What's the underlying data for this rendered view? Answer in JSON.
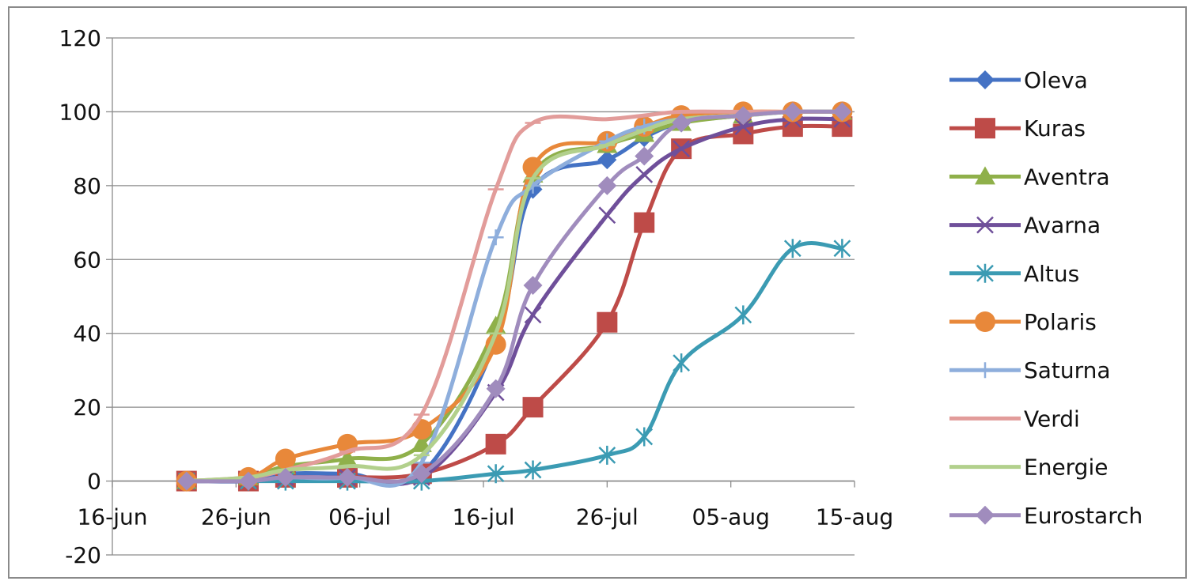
{
  "chart_data": {
    "type": "line",
    "title": "",
    "xlabel": "",
    "ylabel": "",
    "x_ticks": [
      "16-jun",
      "26-jun",
      "06-jul",
      "16-jul",
      "26-jul",
      "05-aug",
      "15-aug"
    ],
    "y_ticks": [
      "120",
      "100",
      "80",
      "60",
      "40",
      "20",
      "0",
      "-20"
    ],
    "xlim_days": [
      0,
      60
    ],
    "ylim": [
      -20,
      120
    ],
    "grid": "horizontal",
    "legend_position": "right",
    "x_days_since_16jun": [
      6,
      11,
      14,
      19,
      25,
      31,
      34,
      40,
      43,
      46,
      51,
      55,
      59
    ],
    "series": [
      {
        "name": "Oleva",
        "color": "#4472c4",
        "marker": "diamond",
        "values": [
          0,
          0,
          2,
          2,
          2,
          38,
          79,
          87,
          93,
          97,
          99,
          100,
          100
        ]
      },
      {
        "name": "Kuras",
        "color": "#be4b48",
        "marker": "square",
        "values": [
          0,
          0,
          1,
          1,
          2,
          10,
          20,
          43,
          70,
          90,
          94,
          96,
          96
        ]
      },
      {
        "name": "Aventra",
        "color": "#8fb04a",
        "marker": "triangle",
        "values": [
          0,
          1,
          4,
          6,
          10,
          42,
          83,
          91,
          94,
          97,
          99,
          100,
          100
        ]
      },
      {
        "name": "Avarna",
        "color": "#6f4f9a",
        "marker": "x",
        "values": [
          0,
          0,
          1,
          1,
          1,
          24,
          45,
          72,
          83,
          90,
          96,
          98,
          98
        ]
      },
      {
        "name": "Altus",
        "color": "#3b9bb3",
        "marker": "asterisk",
        "values": [
          0,
          0,
          0,
          0,
          0,
          2,
          3,
          7,
          12,
          32,
          45,
          63,
          63
        ]
      },
      {
        "name": "Polaris",
        "color": "#e8883a",
        "marker": "circle",
        "values": [
          0,
          1,
          6,
          10,
          14,
          37,
          85,
          92,
          96,
          99,
          100,
          100,
          100
        ]
      },
      {
        "name": "Saturna",
        "color": "#8eaedc",
        "marker": "plus",
        "values": [
          0,
          0,
          1,
          1,
          5,
          66,
          80,
          92,
          96,
          98,
          99,
          100,
          100
        ]
      },
      {
        "name": "Verdi",
        "color": "#e29c9a",
        "marker": "dash",
        "values": [
          0,
          1,
          3,
          8,
          18,
          79,
          97,
          98,
          99,
          100,
          100,
          100,
          100
        ]
      },
      {
        "name": "Energie",
        "color": "#b2d08c",
        "marker": "dash",
        "values": [
          0,
          1,
          3,
          4,
          7,
          40,
          82,
          91,
          95,
          98,
          99,
          100,
          100
        ]
      },
      {
        "name": "Eurostarch",
        "color": "#a08cbd",
        "marker": "diamond",
        "values": [
          0,
          0,
          1,
          1,
          2,
          25,
          53,
          80,
          88,
          97,
          99,
          100,
          100
        ]
      }
    ]
  }
}
